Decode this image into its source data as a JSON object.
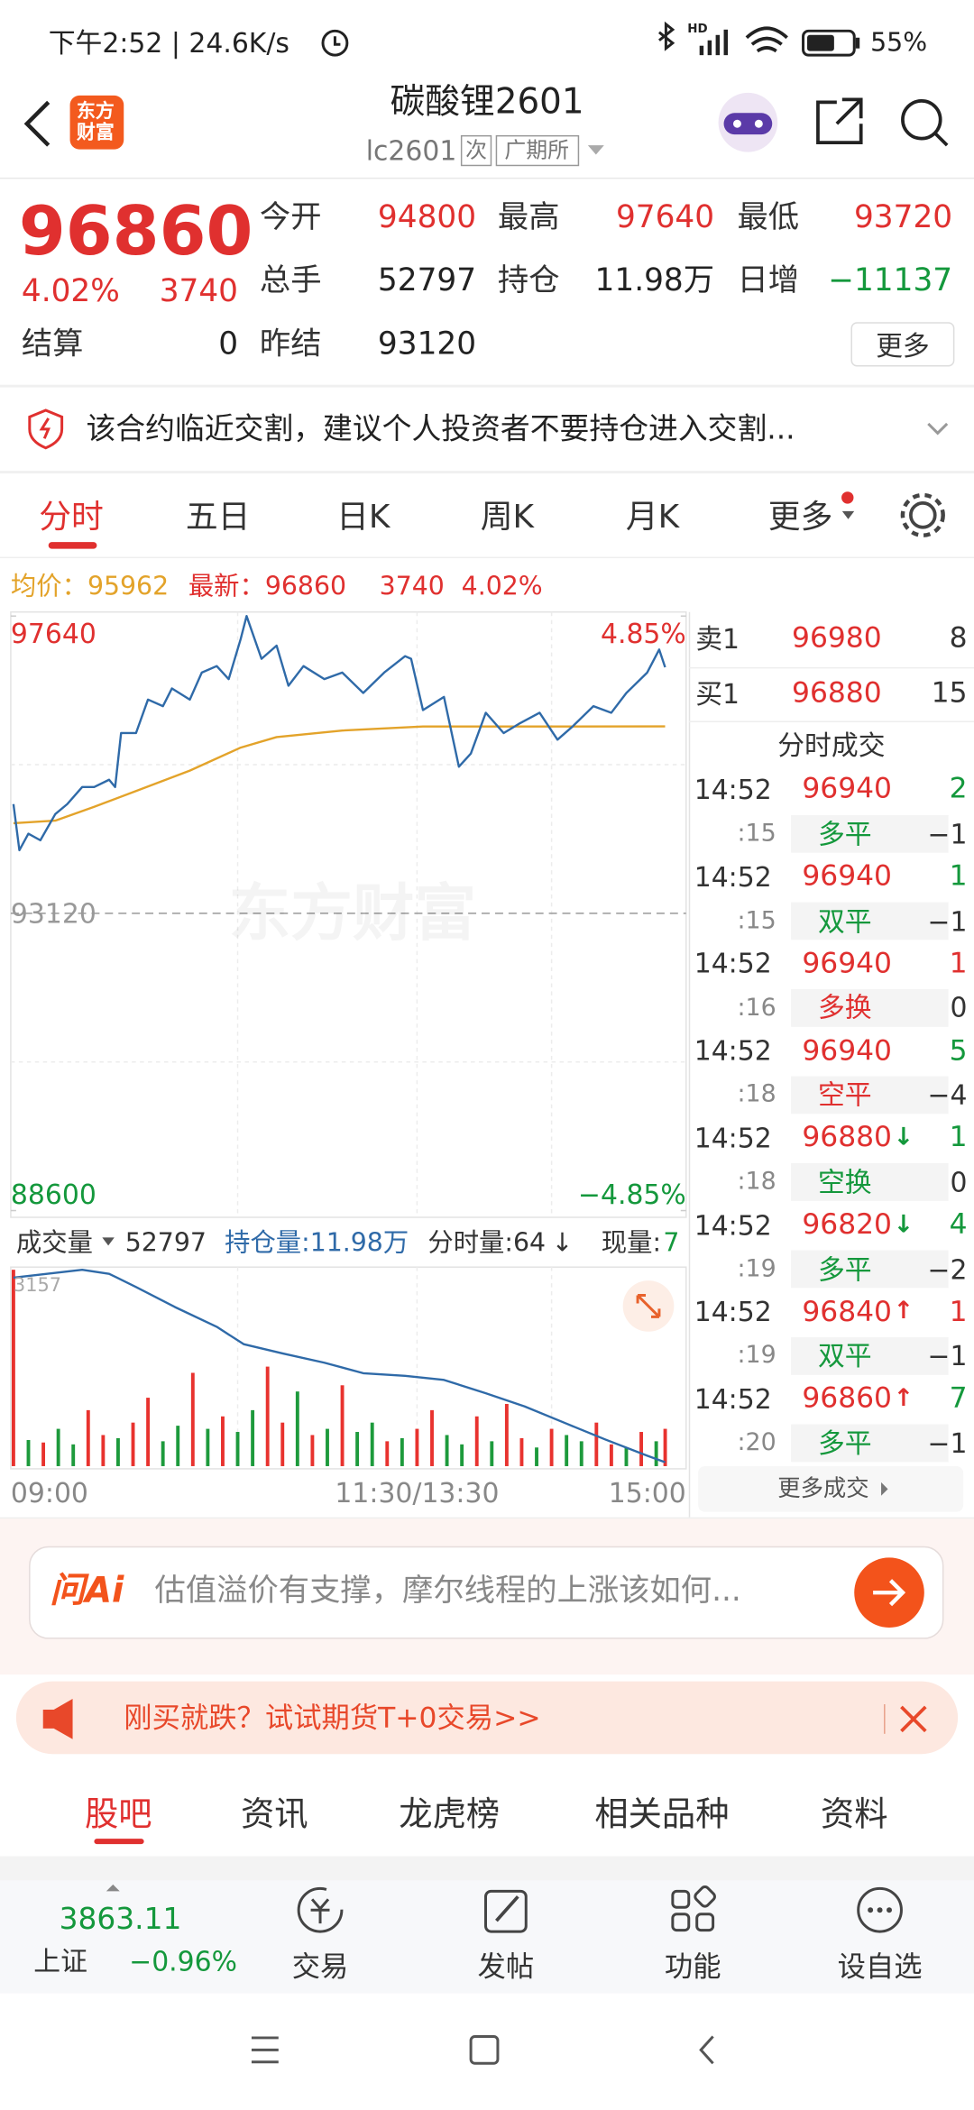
{
  "status": {
    "time": "下午2:52 | 24.6K/s",
    "network": "HD",
    "battery": "55%"
  },
  "header": {
    "logo": "东方财富",
    "title": "碳酸锂2601",
    "code": "lc2601",
    "tags": [
      "次",
      "广期所"
    ]
  },
  "quote": {
    "price": "96860",
    "percent": "4.02%",
    "change": "3740",
    "more": "更多",
    "fields": [
      {
        "label": "今开",
        "value": "94800",
        "color": "red"
      },
      {
        "label": "最高",
        "value": "97640",
        "color": "red"
      },
      {
        "label": "最低",
        "value": "93720",
        "color": "red"
      },
      {
        "label": "总手",
        "value": "52797",
        "color": "black"
      },
      {
        "label": "持仓",
        "value": "11.98万",
        "color": "black"
      },
      {
        "label": "日增",
        "value": "−11137",
        "color": "green"
      },
      {
        "label": "结算",
        "value": "0",
        "color": "black"
      },
      {
        "label": "昨结",
        "value": "93120",
        "color": "black"
      }
    ]
  },
  "notice": "该合约临近交割，建议个人投资者不要持仓进入交割...",
  "tabs": [
    "分时",
    "五日",
    "日K",
    "周K",
    "月K",
    "更多"
  ],
  "legend": {
    "avg": "均价：95962",
    "last": "最新：96860",
    "change": "3740",
    "percent": "4.02%"
  },
  "chart": {
    "type": "line",
    "xlim": [
      0,
      225
    ],
    "xticks": [
      {
        "value": 0,
        "label": "09:00"
      },
      {
        "value": 135,
        "label": "11:30/13:30"
      },
      {
        "value": 225,
        "label": "15:00"
      }
    ],
    "xgrid": [
      75,
      135,
      180
    ],
    "ylim": [
      88600,
      97640
    ],
    "yticks": [
      97640,
      88600
    ],
    "y_pct_ticks": [
      {
        "value": 97640,
        "label": "4.85%"
      },
      {
        "value": 88600,
        "label": "−4.85%"
      }
    ],
    "ygrid": [
      95380,
      90860
    ],
    "reference": 93120,
    "price": {
      "color": "#2f6aa8",
      "x": [
        0,
        2,
        5,
        9,
        14,
        18,
        23,
        27,
        32,
        34,
        36,
        41,
        45,
        50,
        53,
        59,
        63,
        68,
        72,
        76,
        78,
        83,
        88,
        92,
        97,
        104,
        110,
        117,
        124,
        131,
        133,
        137,
        144,
        149,
        153,
        158,
        164,
        169,
        176,
        182,
        187,
        194,
        200,
        205,
        212,
        216,
        218
      ],
      "values": [
        94780,
        94080,
        94330,
        94230,
        94630,
        94780,
        95040,
        95040,
        95150,
        95040,
        95860,
        95860,
        96370,
        96270,
        96540,
        96370,
        96780,
        96880,
        96680,
        97290,
        97640,
        96990,
        97190,
        96580,
        96880,
        96680,
        96780,
        96470,
        96780,
        97030,
        96990,
        96210,
        96410,
        95350,
        95550,
        96170,
        95860,
        96000,
        96170,
        95760,
        95960,
        96270,
        96170,
        96470,
        96780,
        97130,
        96860
      ]
    },
    "average": {
      "color": "#e3a32a",
      "x": [
        0,
        14,
        27,
        41,
        59,
        76,
        88,
        110,
        137,
        176,
        218
      ],
      "values": [
        94490,
        94530,
        94740,
        94980,
        95290,
        95640,
        95800,
        95900,
        95960,
        95960,
        95962
      ]
    },
    "volume": {
      "ylim": [
        0,
        3157
      ],
      "yticks": [
        3157
      ],
      "x": [
        0,
        5,
        10,
        15,
        20,
        25,
        30,
        35,
        40,
        45,
        50,
        55,
        60,
        65,
        70,
        75,
        80,
        85,
        90,
        95,
        100,
        105,
        110,
        115,
        120,
        125,
        130,
        135,
        140,
        145,
        150,
        155,
        160,
        165,
        170,
        175,
        180,
        185,
        190,
        195,
        200,
        205,
        210,
        215,
        218
      ],
      "values": [
        3157,
        420,
        380,
        600,
        350,
        900,
        500,
        450,
        700,
        1100,
        400,
        650,
        1500,
        600,
        800,
        550,
        900,
        1600,
        700,
        1200,
        500,
        600,
        1300,
        550,
        700,
        400,
        450,
        600,
        900,
        500,
        350,
        800,
        400,
        1000,
        450,
        300,
        600,
        500,
        400,
        700,
        350,
        300,
        550,
        400,
        600
      ],
      "colors": [
        "#e8322e",
        "#1d9a3c",
        "#e8322e",
        "#1d9a3c",
        "#1d9a3c",
        "#e8322e",
        "#e8322e",
        "#1d9a3c",
        "#e8322e",
        "#e8322e",
        "#1d9a3c",
        "#1d9a3c",
        "#e8322e",
        "#1d9a3c",
        "#e8322e",
        "#1d9a3c",
        "#1d9a3c",
        "#e8322e",
        "#e8322e",
        "#1d9a3c",
        "#e8322e",
        "#1d9a3c",
        "#e8322e",
        "#1d9a3c",
        "#1d9a3c",
        "#e8322e",
        "#1d9a3c",
        "#e8322e",
        "#e8322e",
        "#1d9a3c",
        "#1d9a3c",
        "#e8322e",
        "#1d9a3c",
        "#e8322e",
        "#e8322e",
        "#1d9a3c",
        "#e8322e",
        "#1d9a3c",
        "#1d9a3c",
        "#e8322e",
        "#e8322e",
        "#1d9a3c",
        "#e8322e",
        "#1d9a3c",
        "#e8322e"
      ]
    },
    "open_interest": {
      "color": "#2f6aa8",
      "y2lim": [
        119600,
        131200
      ],
      "x": [
        0,
        23,
        32,
        41,
        54,
        68,
        77,
        90,
        104,
        117,
        131,
        144,
        158,
        171,
        185,
        198,
        212,
        218
      ],
      "values": [
        130730,
        131200,
        130960,
        130180,
        129000,
        127830,
        126810,
        126260,
        125710,
        125090,
        124930,
        124690,
        123910,
        123130,
        122110,
        121170,
        120220,
        119830
      ]
    }
  },
  "volume_header": {
    "menu": "成交量",
    "total": "52797",
    "open_interest": "持仓量:11.98万",
    "minute_volume": "分时量:64",
    "arrow": "↓",
    "current_label": "现量:",
    "current": "7"
  },
  "book": {
    "ask": {
      "label": "卖1",
      "price": "96980",
      "volume": "8"
    },
    "bid": {
      "label": "买1",
      "price": "96880",
      "volume": "15"
    },
    "title": "分时成交",
    "more": "更多成交",
    "ticks": [
      {
        "time": "14:52",
        "price": "96940",
        "volume": "2",
        "volume_color": "green",
        "second": ":15",
        "kind": "多平",
        "kind_color": "green",
        "change": "−1"
      },
      {
        "time": "14:52",
        "price": "96940",
        "volume": "1",
        "volume_color": "green",
        "second": ":15",
        "kind": "双平",
        "kind_color": "green",
        "change": "−1"
      },
      {
        "time": "14:52",
        "price": "96940",
        "volume": "1",
        "volume_color": "red",
        "second": ":16",
        "kind": "多换",
        "kind_color": "red",
        "change": "0"
      },
      {
        "time": "14:52",
        "price": "96940",
        "volume": "5",
        "volume_color": "green",
        "second": ":18",
        "kind": "空平",
        "kind_color": "red",
        "change": "−4"
      },
      {
        "time": "14:52",
        "price": "96880",
        "arrow": "↓",
        "arrow_color": "green",
        "volume": "1",
        "volume_color": "green",
        "second": ":18",
        "kind": "空换",
        "kind_color": "green",
        "change": "0"
      },
      {
        "time": "14:52",
        "price": "96820",
        "arrow": "↓",
        "arrow_color": "green",
        "volume": "4",
        "volume_color": "green",
        "second": ":19",
        "kind": "多平",
        "kind_color": "green",
        "change": "−2"
      },
      {
        "time": "14:52",
        "price": "96840",
        "arrow": "↑",
        "arrow_color": "red",
        "volume": "1",
        "volume_color": "red",
        "second": ":19",
        "kind": "双平",
        "kind_color": "green",
        "change": "−1"
      },
      {
        "time": "14:52",
        "price": "96860",
        "arrow": "↑",
        "arrow_color": "red",
        "volume": "7",
        "volume_color": "green",
        "second": ":20",
        "kind": "多平",
        "kind_color": "green",
        "change": "−1"
      }
    ]
  },
  "ai": {
    "brand": "问Ai",
    "prompt": "估值溢价有支撑，摩尔线程的上涨该如何..."
  },
  "promo": "刚买就跌？试试期货T+0交易>>",
  "bottom_tabs": [
    "股吧",
    "资讯",
    "龙虎榜",
    "相关品种",
    "资料"
  ],
  "index": {
    "value": "3863.11",
    "name": "上证",
    "change": "−0.96%"
  },
  "nav": [
    "交易",
    "发帖",
    "功能",
    "设自选"
  ],
  "watermark": "东方财富"
}
